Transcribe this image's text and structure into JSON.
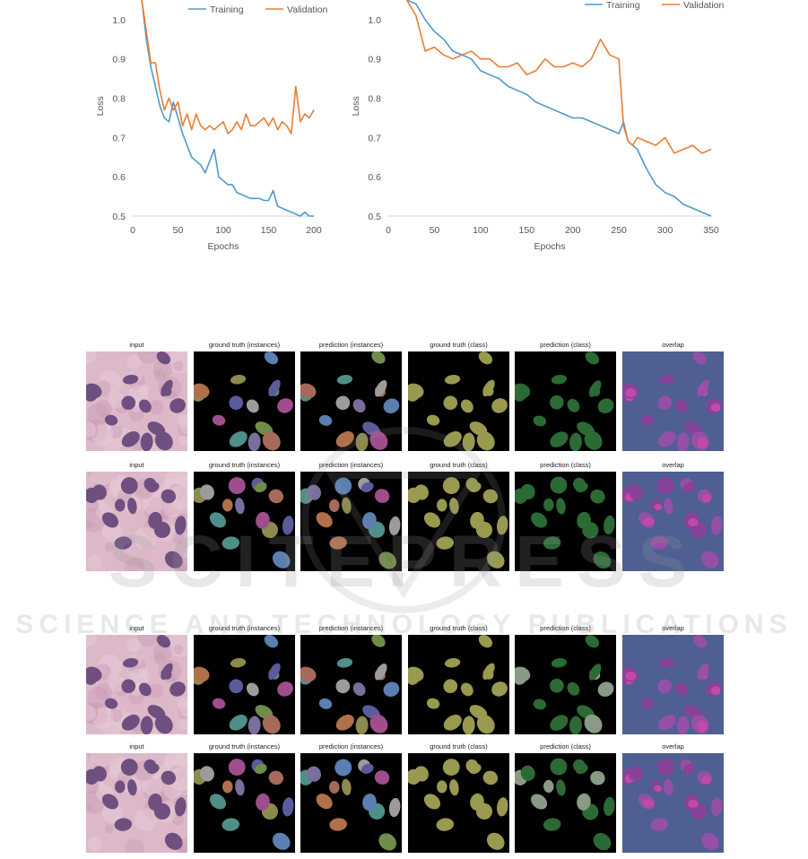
{
  "chart_data": [
    {
      "type": "line",
      "title": "",
      "xlabel": "Epochs",
      "ylabel": "Loss",
      "xlim": [
        0,
        200
      ],
      "ylim": [
        0.5,
        1.05
      ],
      "xticks": [
        0,
        50,
        100,
        150,
        200
      ],
      "yticks": [
        0.5,
        0.6,
        0.7,
        0.8,
        0.9,
        1.0
      ],
      "grid": false,
      "legend": "top-right",
      "series": [
        {
          "name": "Training",
          "color": "#4e9ac9",
          "x": [
            10,
            15,
            20,
            25,
            30,
            35,
            40,
            45,
            50,
            55,
            60,
            65,
            70,
            75,
            80,
            85,
            90,
            95,
            100,
            105,
            110,
            115,
            120,
            125,
            130,
            135,
            140,
            145,
            150,
            155,
            160,
            165,
            170,
            175,
            180,
            185,
            190,
            195,
            200
          ],
          "y": [
            1.05,
            0.95,
            0.88,
            0.83,
            0.78,
            0.75,
            0.74,
            0.79,
            0.75,
            0.71,
            0.68,
            0.65,
            0.64,
            0.63,
            0.61,
            0.64,
            0.67,
            0.6,
            0.59,
            0.58,
            0.58,
            0.56,
            0.555,
            0.55,
            0.545,
            0.545,
            0.545,
            0.54,
            0.54,
            0.565,
            0.525,
            0.52,
            0.515,
            0.51,
            0.505,
            0.5,
            0.51,
            0.5,
            0.495
          ]
        },
        {
          "name": "Validation",
          "color": "#ec7d32",
          "x": [
            10,
            15,
            20,
            25,
            30,
            35,
            40,
            45,
            50,
            55,
            60,
            65,
            70,
            75,
            80,
            85,
            90,
            95,
            100,
            105,
            110,
            115,
            120,
            125,
            130,
            135,
            140,
            145,
            150,
            155,
            160,
            165,
            170,
            175,
            180,
            185,
            190,
            195,
            200
          ],
          "y": [
            1.05,
            0.97,
            0.89,
            0.89,
            0.82,
            0.77,
            0.8,
            0.77,
            0.79,
            0.73,
            0.76,
            0.72,
            0.76,
            0.73,
            0.72,
            0.73,
            0.72,
            0.73,
            0.74,
            0.71,
            0.72,
            0.74,
            0.72,
            0.76,
            0.73,
            0.73,
            0.74,
            0.75,
            0.73,
            0.75,
            0.72,
            0.74,
            0.73,
            0.71,
            0.83,
            0.74,
            0.76,
            0.75,
            0.77
          ]
        }
      ]
    },
    {
      "type": "line",
      "title": "",
      "xlabel": "Epochs",
      "ylabel": "Loss",
      "xlim": [
        0,
        350
      ],
      "ylim": [
        0.5,
        1.05
      ],
      "xticks": [
        0,
        50,
        100,
        150,
        200,
        250,
        300,
        350
      ],
      "yticks": [
        0.5,
        0.6,
        0.7,
        0.8,
        0.9,
        1.0
      ],
      "grid": false,
      "legend": "top-right",
      "series": [
        {
          "name": "Training",
          "color": "#4e9ac9",
          "x": [
            20,
            30,
            40,
            50,
            60,
            70,
            80,
            90,
            100,
            110,
            120,
            130,
            140,
            150,
            160,
            170,
            180,
            190,
            200,
            210,
            220,
            230,
            240,
            250,
            255,
            260,
            265,
            270,
            280,
            290,
            300,
            310,
            320,
            330,
            340,
            350
          ],
          "y": [
            1.06,
            1.04,
            1.0,
            0.97,
            0.95,
            0.92,
            0.91,
            0.9,
            0.87,
            0.86,
            0.85,
            0.83,
            0.82,
            0.81,
            0.79,
            0.78,
            0.77,
            0.76,
            0.75,
            0.75,
            0.74,
            0.73,
            0.72,
            0.71,
            0.74,
            0.69,
            0.68,
            0.67,
            0.62,
            0.58,
            0.56,
            0.55,
            0.53,
            0.52,
            0.51,
            0.5
          ]
        },
        {
          "name": "Validation",
          "color": "#ec7d32",
          "x": [
            20,
            30,
            40,
            50,
            60,
            70,
            80,
            90,
            100,
            110,
            120,
            130,
            140,
            150,
            160,
            170,
            180,
            190,
            200,
            210,
            220,
            230,
            240,
            250,
            255,
            260,
            265,
            270,
            280,
            290,
            300,
            310,
            320,
            330,
            340,
            350
          ],
          "y": [
            1.05,
            1.01,
            0.92,
            0.93,
            0.91,
            0.9,
            0.91,
            0.92,
            0.9,
            0.9,
            0.88,
            0.88,
            0.89,
            0.86,
            0.87,
            0.9,
            0.88,
            0.88,
            0.89,
            0.88,
            0.9,
            0.95,
            0.91,
            0.9,
            0.73,
            0.69,
            0.68,
            0.7,
            0.69,
            0.68,
            0.7,
            0.66,
            0.67,
            0.68,
            0.66,
            0.67
          ]
        }
      ]
    }
  ],
  "panel_titles": [
    "input",
    "ground truth (instances)",
    "prediction (instances)",
    "ground truth (class)",
    "prediction (class)",
    "overlap"
  ],
  "watermark": {
    "main": "SCITEPRESS",
    "sub": "SCIENCE AND TECHNOLOGY PUBLICATIONS"
  },
  "colors": {
    "training": "#4e9ac9",
    "validation": "#ec7d32",
    "mask_background": "#000000",
    "overlap_background": "#4f5f92",
    "tissue_background": "#dcb8c8",
    "nucleus": "#6e4f80",
    "gt_class": "#99994f",
    "pred_class": "#2c6a35"
  }
}
